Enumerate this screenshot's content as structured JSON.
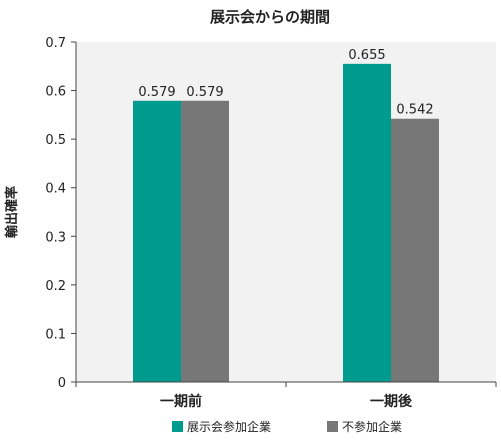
{
  "chart_data": {
    "type": "bar",
    "title": "展示会からの期間",
    "xlabel": "",
    "ylabel": "輸出確率",
    "categories": [
      "一期前",
      "一期後"
    ],
    "series": [
      {
        "name": "展示会参加企業",
        "color": "#009b8f",
        "values": [
          0.579,
          0.655
        ],
        "labels": [
          "0.579",
          "0.655"
        ]
      },
      {
        "name": "不参加企業",
        "color": "#777777",
        "values": [
          0.579,
          0.542
        ],
        "labels": [
          "0.579",
          "0.542"
        ]
      }
    ],
    "ylim": [
      0,
      0.7
    ],
    "yticks": [
      "0",
      "0.1",
      "0.2",
      "0.3",
      "0.4",
      "0.5",
      "0.6",
      "0.7"
    ],
    "grid": false,
    "plot_background": "#f2f2f2",
    "legend": "bottom"
  }
}
